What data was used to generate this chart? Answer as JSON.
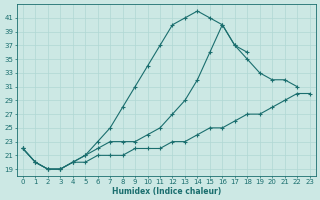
{
  "xlabel": "Humidex (Indice chaleur)",
  "ylabel": "",
  "bg_color": "#cce8e4",
  "line_color": "#1a6e6e",
  "grid_color": "#b0d8d4",
  "series": [
    {
      "x": [
        0,
        1,
        2,
        3,
        4,
        5,
        6,
        7,
        8,
        9,
        10,
        11,
        12,
        13,
        14,
        15,
        16,
        17,
        18
      ],
      "y": [
        22,
        20,
        19,
        19,
        20,
        21,
        23,
        25,
        28,
        31,
        34,
        37,
        40,
        41,
        42,
        41,
        40,
        37,
        36
      ]
    },
    {
      "x": [
        0,
        1,
        2,
        3,
        4,
        5,
        6,
        7,
        8,
        9,
        10,
        11,
        12,
        13,
        14,
        15,
        16,
        17,
        18,
        19,
        20,
        21,
        22
      ],
      "y": [
        22,
        20,
        19,
        19,
        20,
        21,
        22,
        23,
        23,
        23,
        24,
        25,
        27,
        29,
        32,
        36,
        40,
        37,
        35,
        33,
        32,
        32,
        31
      ]
    },
    {
      "x": [
        0,
        1,
        2,
        3,
        4,
        5,
        6,
        7,
        8,
        9,
        10,
        11,
        12,
        13,
        14,
        15,
        16,
        17,
        18,
        19,
        20,
        21,
        22,
        23
      ],
      "y": [
        22,
        20,
        19,
        19,
        20,
        20,
        21,
        21,
        21,
        22,
        22,
        22,
        23,
        23,
        24,
        25,
        25,
        26,
        27,
        27,
        28,
        29,
        30,
        30
      ]
    }
  ],
  "xlim": [
    -0.5,
    23.5
  ],
  "ylim": [
    18,
    43
  ],
  "yticks": [
    19,
    21,
    23,
    25,
    27,
    29,
    31,
    33,
    35,
    37,
    39,
    41
  ],
  "xticks": [
    0,
    1,
    2,
    3,
    4,
    5,
    6,
    7,
    8,
    9,
    10,
    11,
    12,
    13,
    14,
    15,
    16,
    17,
    18,
    19,
    20,
    21,
    22,
    23
  ],
  "xlabel_fontsize": 5.5,
  "tick_fontsize": 5.0,
  "linewidth": 0.8,
  "markersize": 3.0
}
